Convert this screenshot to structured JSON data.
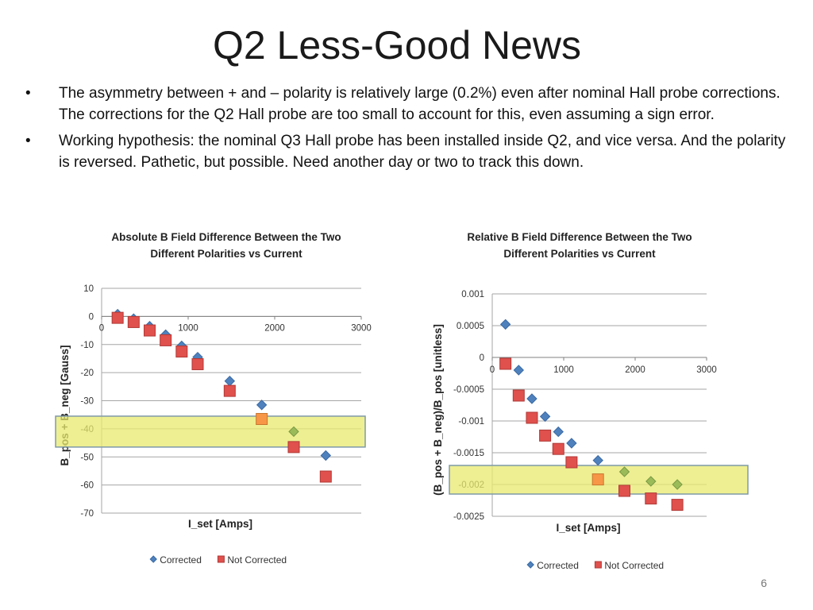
{
  "slide": {
    "title": "Q2 Less-Good News",
    "bullets": [
      "The asymmetry between + and – polarity is relatively large (0.2%) even after nominal Hall probe corrections.  The corrections for the Q2 Hall probe are too small to account for this, even assuming a sign error.",
      "Working hypothesis: the nominal Q3 Hall probe has been installed inside Q2, and vice versa. And the polarity is reversed. Pathetic, but possible. Need another day or two to track this down."
    ],
    "bullet_symbol": "•",
    "page_number": "6"
  },
  "colors": {
    "corrected": "#4f81bd",
    "not_corrected": "#e0504d",
    "highlight_fill": "#e8ea6e",
    "highlight_stroke": "#7f9aa8",
    "green_marker": "#9bbb59",
    "orange_marker": "#f79646",
    "gridline": "#a6a6a6"
  },
  "chart_data": [
    {
      "type": "scatter",
      "title_line1": "Absolute B Field Difference Between the Two",
      "title_line2": "Different Polarities vs Current",
      "xlabel": "I_set [Amps]",
      "ylabel": "B_pos + B_neg [Gauss]",
      "xlim": [
        0,
        3000
      ],
      "ylim": [
        -70,
        10
      ],
      "xticks": [
        "0",
        "1000",
        "2000",
        "3000"
      ],
      "yticks": [
        "10",
        "0",
        "-10",
        "-20",
        "-30",
        "-40",
        "-50",
        "-60",
        "-70"
      ],
      "grid": true,
      "legend_position": "bottom",
      "highlight_band": [
        -46.5,
        -35.5
      ],
      "series": [
        {
          "name": "Corrected",
          "marker": "diamond",
          "x": [
            185,
            370,
            555,
            740,
            925,
            1110,
            1480,
            1850,
            2220,
            2590
          ],
          "y": [
            0.8,
            -0.8,
            -3.5,
            -6.5,
            -10.5,
            -14.5,
            -23,
            -31.5,
            -41,
            -49.5
          ],
          "highlight_index": 8
        },
        {
          "name": "Not Corrected",
          "marker": "square",
          "x": [
            185,
            370,
            555,
            740,
            925,
            1110,
            1480,
            1850,
            2220,
            2590
          ],
          "y": [
            -0.5,
            -2,
            -5,
            -8.5,
            -12.5,
            -17,
            -26.5,
            -36.5,
            -46.5,
            -57
          ],
          "highlight_index": 7
        }
      ]
    },
    {
      "type": "scatter",
      "title_line1": "Relative B Field Difference Between the Two",
      "title_line2": "Different Polarities vs Current",
      "xlabel": "I_set [Amps]",
      "ylabel": "(B_pos + B_neg)/B_pos [unitless]",
      "xlim": [
        0,
        3000
      ],
      "ylim": [
        -0.0025,
        0.001
      ],
      "xticks": [
        "0",
        "1000",
        "2000",
        "3000"
      ],
      "yticks": [
        "0.001",
        "0.0005",
        "0",
        "-0.0005",
        "-0.001",
        "-0.0015",
        "-0.002",
        "-0.0025"
      ],
      "grid": true,
      "legend_position": "bottom",
      "highlight_band": [
        -0.00215,
        -0.0017
      ],
      "series": [
        {
          "name": "Corrected",
          "marker": "diamond",
          "x": [
            185,
            370,
            555,
            740,
            925,
            1110,
            1480,
            1850,
            2220,
            2590
          ],
          "y": [
            0.00052,
            -0.0002,
            -0.00065,
            -0.00093,
            -0.00117,
            -0.00135,
            -0.00162,
            -0.0018,
            -0.00195,
            -0.002
          ],
          "highlight_index": [
            7,
            8,
            9
          ]
        },
        {
          "name": "Not Corrected",
          "marker": "square",
          "x": [
            185,
            370,
            555,
            740,
            925,
            1110,
            1480,
            1850,
            2220,
            2590
          ],
          "y": [
            -0.0001,
            -0.0006,
            -0.00095,
            -0.00123,
            -0.00144,
            -0.00165,
            -0.00192,
            -0.0021,
            -0.00222,
            -0.00232
          ],
          "highlight_index": 6
        }
      ]
    }
  ]
}
